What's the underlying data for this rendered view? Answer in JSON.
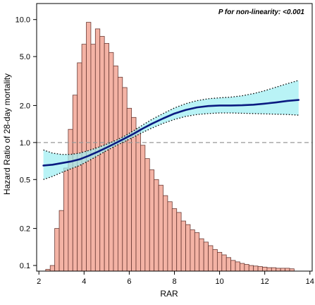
{
  "chart_data": {
    "type": "line",
    "annotation": "P for non-linearity: <0.001",
    "xlabel": "RAR",
    "ylabel": "Hazard Ratio of 28-day mortality",
    "x_ticks": [
      2,
      4,
      6,
      8,
      10,
      12,
      14
    ],
    "y_ticks": [
      {
        "value": 0.1,
        "label": "0.1"
      },
      {
        "value": 0.2,
        "label": "0.2"
      },
      {
        "value": 0.5,
        "label": "0.5"
      },
      {
        "value": 1.0,
        "label": "1.0"
      },
      {
        "value": 2.0,
        "label": "2.0"
      },
      {
        "value": 5.0,
        "label": "5.0"
      },
      {
        "value": 10.0,
        "label": "10.0"
      }
    ],
    "xlim": [
      1.9,
      14.1
    ],
    "ylim": [
      0.09,
      13.5
    ],
    "y_scale": "log",
    "reference_line": 1.0,
    "colors": {
      "histogram_fill": "#f4b3a5",
      "histogram_edge": "#6b3a34",
      "ci_band": "#9eeef3",
      "curve": "#0a1a80",
      "ci_line": "#000000",
      "reference_line": "#999999"
    },
    "histogram": {
      "bin_start": 2.3,
      "bin_width": 0.2,
      "heights": [
        0.093,
        0.1,
        0.2,
        0.28,
        0.62,
        1.28,
        2.43,
        4.45,
        6.3,
        9.5,
        6.3,
        8.4,
        7.3,
        6.4,
        5.4,
        4.2,
        3.4,
        2.8,
        1.9,
        1.6,
        1.3,
        0.95,
        0.74,
        0.6,
        0.5,
        0.45,
        0.37,
        0.33,
        0.29,
        0.27,
        0.23,
        0.215,
        0.195,
        0.185,
        0.165,
        0.155,
        0.145,
        0.135,
        0.128,
        0.122,
        0.116,
        0.11,
        0.107,
        0.104,
        0.102,
        0.1,
        0.099,
        0.098,
        0.097,
        0.096,
        0.096,
        0.095,
        0.095,
        0.095,
        0.094
      ]
    },
    "series": [
      {
        "x": [
          2.2,
          2.6,
          3.0,
          3.4,
          3.8,
          4.2,
          4.6,
          5.0,
          5.4,
          5.8,
          6.2,
          6.6,
          7.0,
          7.5,
          8.0,
          8.5,
          9.0,
          9.5,
          10.0,
          10.5,
          11.0,
          11.5,
          12.0,
          12.5,
          13.0,
          13.5
        ],
        "y": [
          0.65,
          0.66,
          0.68,
          0.7,
          0.73,
          0.78,
          0.84,
          0.91,
          0.99,
          1.08,
          1.18,
          1.3,
          1.42,
          1.57,
          1.72,
          1.84,
          1.93,
          1.98,
          2.0,
          2.0,
          2.01,
          2.03,
          2.07,
          2.12,
          2.18,
          2.22
        ],
        "lower": [
          0.5,
          0.53,
          0.57,
          0.61,
          0.65,
          0.71,
          0.78,
          0.86,
          0.94,
          1.02,
          1.11,
          1.21,
          1.31,
          1.43,
          1.54,
          1.63,
          1.69,
          1.72,
          1.74,
          1.74,
          1.73,
          1.72,
          1.71,
          1.7,
          1.69,
          1.67
        ],
        "upper": [
          0.87,
          0.82,
          0.8,
          0.8,
          0.82,
          0.86,
          0.91,
          0.97,
          1.04,
          1.13,
          1.25,
          1.39,
          1.54,
          1.72,
          1.91,
          2.07,
          2.19,
          2.27,
          2.31,
          2.34,
          2.4,
          2.5,
          2.64,
          2.82,
          3.01,
          3.2
        ]
      }
    ]
  }
}
